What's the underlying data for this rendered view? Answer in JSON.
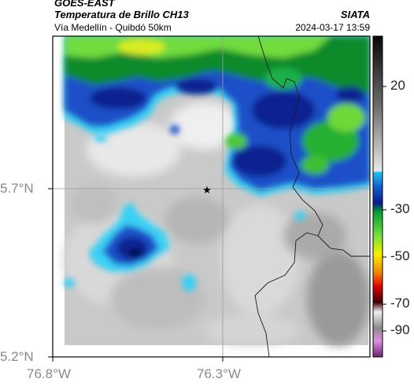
{
  "header": {
    "satellite": "GOES-EAST",
    "product": "Temperatura de Brillo CH13",
    "source": "SIATA",
    "route": "Vía Medellín - Quibdó 50km",
    "timestamp": "2024-03-17 13:59"
  },
  "axes": {
    "lat_ticks": [
      "5.7°N",
      "5.2°N"
    ],
    "lon_ticks": [
      "76.8°W",
      "76.3°W"
    ]
  },
  "colorbar": {
    "ticks": [
      "20",
      "-30",
      "-50",
      "-70",
      "-90"
    ]
  },
  "marker": {
    "name": "star-icon"
  },
  "colors": {
    "frame": "#000000",
    "grid": "#9a9a9a",
    "border_line": "#222222"
  }
}
